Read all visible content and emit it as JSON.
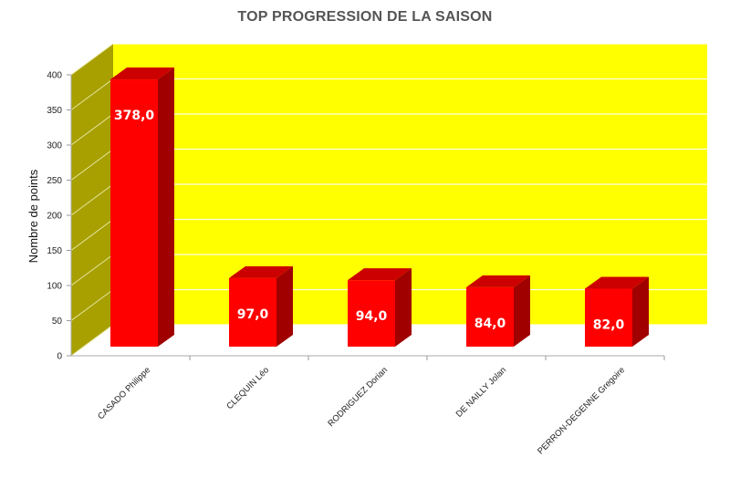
{
  "chart_data": {
    "type": "bar",
    "title": "TOP PROGRESSION DE LA SAISON",
    "ylabel": "Nombre de points",
    "xlabel": "",
    "categories": [
      "CASADO Philippe",
      "CLEQUIN Léo",
      "RODRIGUEZ Dorian",
      "DE NAILLY Jolan",
      "PERRON-DEGENNE Gregoire"
    ],
    "values": [
      378.0,
      97.0,
      94.0,
      84.0,
      82.0
    ],
    "data_labels": [
      "378,0",
      "97,0",
      "94,0",
      "84,0",
      "82,0"
    ],
    "ylim": [
      0,
      400
    ],
    "yticks": [
      0,
      50,
      100,
      150,
      200,
      250,
      300,
      350,
      400
    ],
    "grid": true,
    "style": "3d",
    "colors": {
      "bar_front": "#ff0000",
      "bar_top": "#cc0000",
      "bar_side": "#a00000",
      "back_wall": "#ffff00",
      "side_wall": "#a8a000",
      "gridline": "#c8c800"
    }
  }
}
